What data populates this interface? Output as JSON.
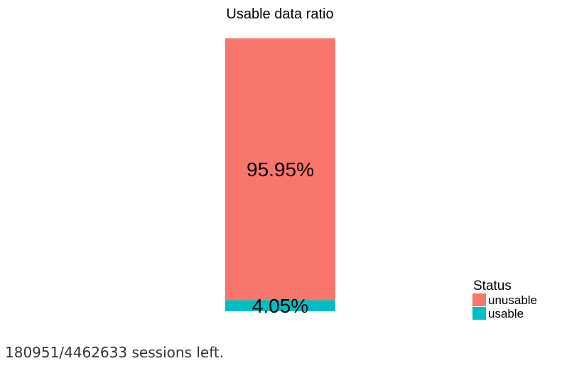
{
  "chart_data": {
    "type": "bar",
    "stacked": true,
    "title": "Usable data ratio",
    "xlabel": "",
    "ylabel": "",
    "ylim": [
      0,
      100
    ],
    "axes_visible": false,
    "grid": false,
    "legend": {
      "title": "Status",
      "position": "bottom-right",
      "items": [
        {
          "name": "unusable",
          "color": "#F8766D"
        },
        {
          "name": "usable",
          "color": "#00BFC4"
        }
      ]
    },
    "series": [
      {
        "name": "unusable",
        "value": 95.95,
        "label": "95.95%",
        "color": "#F8766D"
      },
      {
        "name": "usable",
        "value": 4.05,
        "label": "4.05%",
        "color": "#00BFC4"
      }
    ]
  },
  "caption": "180951/4462633 sessions left."
}
